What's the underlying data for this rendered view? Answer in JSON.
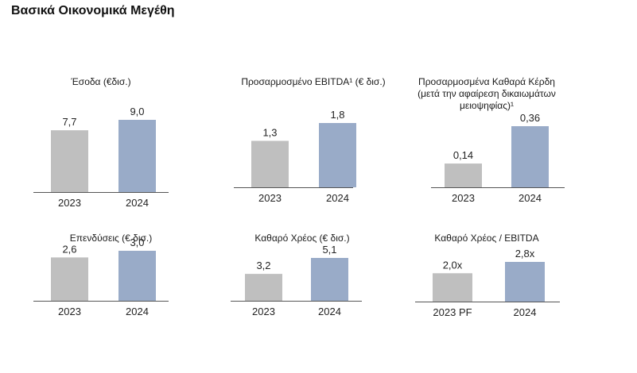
{
  "page_title": "Βασικά Οικονομικά Μεγέθη",
  "colors": {
    "bar_prior": "#bfbfbf",
    "bar_current": "#99abc8",
    "baseline": "#555555"
  },
  "chart_data": [
    {
      "type": "bar",
      "title": "Έσοδα (€δισ.)",
      "categories": [
        "2023",
        "2024"
      ],
      "values": [
        7.7,
        9.0
      ],
      "labels": [
        "7,7",
        "9,0"
      ],
      "ylim": [
        0,
        9.0
      ]
    },
    {
      "type": "bar",
      "title": "Προσαρμοσμένο EBITDA¹ (€ δισ.)",
      "categories": [
        "2023",
        "2024"
      ],
      "values": [
        1.3,
        1.8
      ],
      "labels": [
        "1,3",
        "1,8"
      ],
      "ylim": [
        0,
        1.8
      ]
    },
    {
      "type": "bar",
      "title": "Προσαρμοσμένα Καθαρά Κέρδη (μετά την αφαίρεση δικαιωμάτων μειοψηφίας)¹",
      "title_lines": [
        "Προσαρμοσμένα Καθαρά Κέρδη",
        "(μετά την αφαίρεση δικαιωμάτων",
        "μειοψηφίας)¹"
      ],
      "categories": [
        "2023",
        "2024"
      ],
      "values": [
        0.14,
        0.36
      ],
      "labels": [
        "0,14",
        "0,36"
      ],
      "ylim": [
        0,
        0.36
      ]
    },
    {
      "type": "bar",
      "title": "Επενδύσεις (€ δισ.)",
      "categories": [
        "2023",
        "2024"
      ],
      "values": [
        2.6,
        3.0
      ],
      "labels": [
        "2,6",
        "3,0"
      ],
      "ylim": [
        0,
        3.0
      ]
    },
    {
      "type": "bar",
      "title": "Καθαρό Χρέος (€ δισ.)",
      "categories": [
        "2023",
        "2024"
      ],
      "values": [
        3.2,
        5.1
      ],
      "labels": [
        "3,2",
        "5,1"
      ],
      "ylim": [
        0,
        5.1
      ]
    },
    {
      "type": "bar",
      "title": "Καθαρό Χρέος / EBITDA",
      "categories": [
        "2023 PF",
        "2024"
      ],
      "values": [
        2.0,
        2.8
      ],
      "labels": [
        "2,0x",
        "2,8x"
      ],
      "ylim": [
        0,
        2.8
      ]
    }
  ]
}
